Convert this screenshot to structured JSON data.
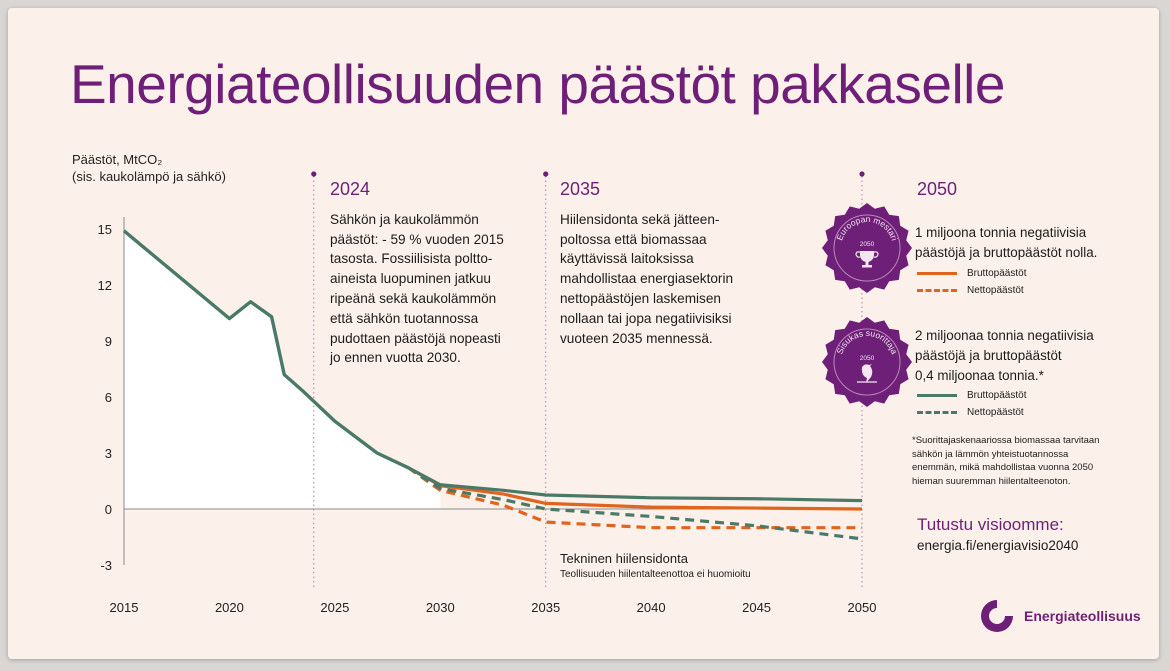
{
  "colors": {
    "purple": "#6e1f77",
    "green": "#4a7a67",
    "orange": "#e0641e",
    "background": "#fcf1ea"
  },
  "title": "Energiateollisuuden päästöt pakkaselle",
  "y_axis_label": [
    "Päästöt, MtCO₂",
    "(sis. kaukolämpö ja sähkö)"
  ],
  "columns": [
    {
      "year": "2024",
      "lines": [
        "Sähkön ja kaukolämmön",
        "päästöt: - 59 % vuoden 2015",
        "tasosta. Fossiilisista poltto-",
        "aineista luopuminen jatkuu",
        "ripeänä sekä kaukolämmön",
        "että sähkön tuotannossa",
        "pudottaen päästöjä nopeasti",
        "jo ennen vuotta 2030."
      ]
    },
    {
      "year": "2035",
      "lines": [
        "Hiilensidonta sekä jätteen-",
        "poltossa että biomassaa",
        "käyttävissä laitoksissa",
        "mahdollistaa energiasektorin",
        "nettopäästöjen laskemisen",
        "nollaan tai jopa negatiivisiksi",
        "vuoteen 2035 mennessä."
      ]
    },
    {
      "year": "2050",
      "lines": []
    }
  ],
  "scenarios": [
    {
      "badge_text": "Euroopan mestari",
      "badge_year": "2050",
      "badge_icon": "trophy-icon",
      "lines": [
        "1 miljoona tonnia negatiivisia",
        "päästöjä ja bruttopäästöt nolla."
      ],
      "legend_gross": "Bruttopäästöt",
      "legend_net": "Nettopäästöt",
      "color": "#e0641e"
    },
    {
      "badge_text": "Sisukas suorittaja",
      "badge_year": "2050",
      "badge_icon": "bird-icon",
      "lines": [
        "2 miljoonaa tonnia negatiivisia",
        "päästöjä ja bruttopäästöt",
        "0,4 miljoonaa tonnia.*"
      ],
      "legend_gross": "Bruttopäästöt",
      "legend_net": "Nettopäästöt",
      "color": "#4a7a67"
    }
  ],
  "footnote": [
    "*Suorittajaskenaariossa biomassaa tarvitaan",
    "sähkön ja lämmön yhteistuotannossa",
    "enemmän, mikä mahdollistaa vuonna 2050",
    "hieman suuremman hiilentalteenoton."
  ],
  "visio": {
    "heading": "Tutustu visioomme:",
    "link": "energia.fi/energiavisio2040"
  },
  "technical": {
    "title": "Tekninen hiilensidonta",
    "subtitle": "Teollisuuden hiilentalteenottoa ei huomioitu"
  },
  "logo_text": "Energiateollisuus",
  "chart_data": {
    "type": "line",
    "xlim": [
      2015,
      2050
    ],
    "ylim": [
      -3,
      15
    ],
    "x_ticks": [
      2015,
      2020,
      2025,
      2030,
      2035,
      2040,
      2045,
      2050
    ],
    "y_ticks": [
      15,
      12,
      9,
      6,
      3,
      0,
      -3
    ],
    "milestones": [
      2024,
      2035,
      2050
    ],
    "historical": {
      "x": [
        2015,
        2020,
        2021,
        2022,
        2022.6,
        2023.5,
        2025,
        2027,
        2028.5
      ],
      "y": [
        14.9,
        10.2,
        11.1,
        10.3,
        7.2,
        6.3,
        4.7,
        3.0,
        2.2
      ]
    },
    "series": [
      {
        "name": "Bruttopäästöt",
        "scenario": "Euroopan mestari",
        "style": "solid",
        "color": "#e0641e",
        "x": [
          2028.5,
          2030,
          2033,
          2035,
          2040,
          2045,
          2050
        ],
        "y": [
          2.2,
          1.25,
          0.8,
          0.3,
          0.1,
          0.05,
          0.0
        ]
      },
      {
        "name": "Nettopäästöt",
        "scenario": "Euroopan mestari",
        "style": "dashed",
        "color": "#e0641e",
        "x": [
          2028.5,
          2030,
          2033,
          2035,
          2040,
          2045,
          2050
        ],
        "y": [
          2.2,
          1.0,
          0.2,
          -0.7,
          -1.0,
          -1.0,
          -1.0
        ]
      },
      {
        "name": "Bruttopäästöt",
        "scenario": "Sisukas suorittaja",
        "style": "solid",
        "color": "#4a7a67",
        "x": [
          2028.5,
          2030,
          2033,
          2035,
          2040,
          2045,
          2050
        ],
        "y": [
          2.2,
          1.3,
          1.0,
          0.75,
          0.6,
          0.55,
          0.45
        ]
      },
      {
        "name": "Nettopäästöt",
        "scenario": "Sisukas suorittaja",
        "style": "dashed",
        "color": "#4a7a67",
        "x": [
          2028.5,
          2030,
          2033,
          2035,
          2040,
          2045,
          2050
        ],
        "y": [
          2.2,
          1.1,
          0.5,
          0.0,
          -0.4,
          -0.9,
          -1.6
        ]
      }
    ]
  }
}
